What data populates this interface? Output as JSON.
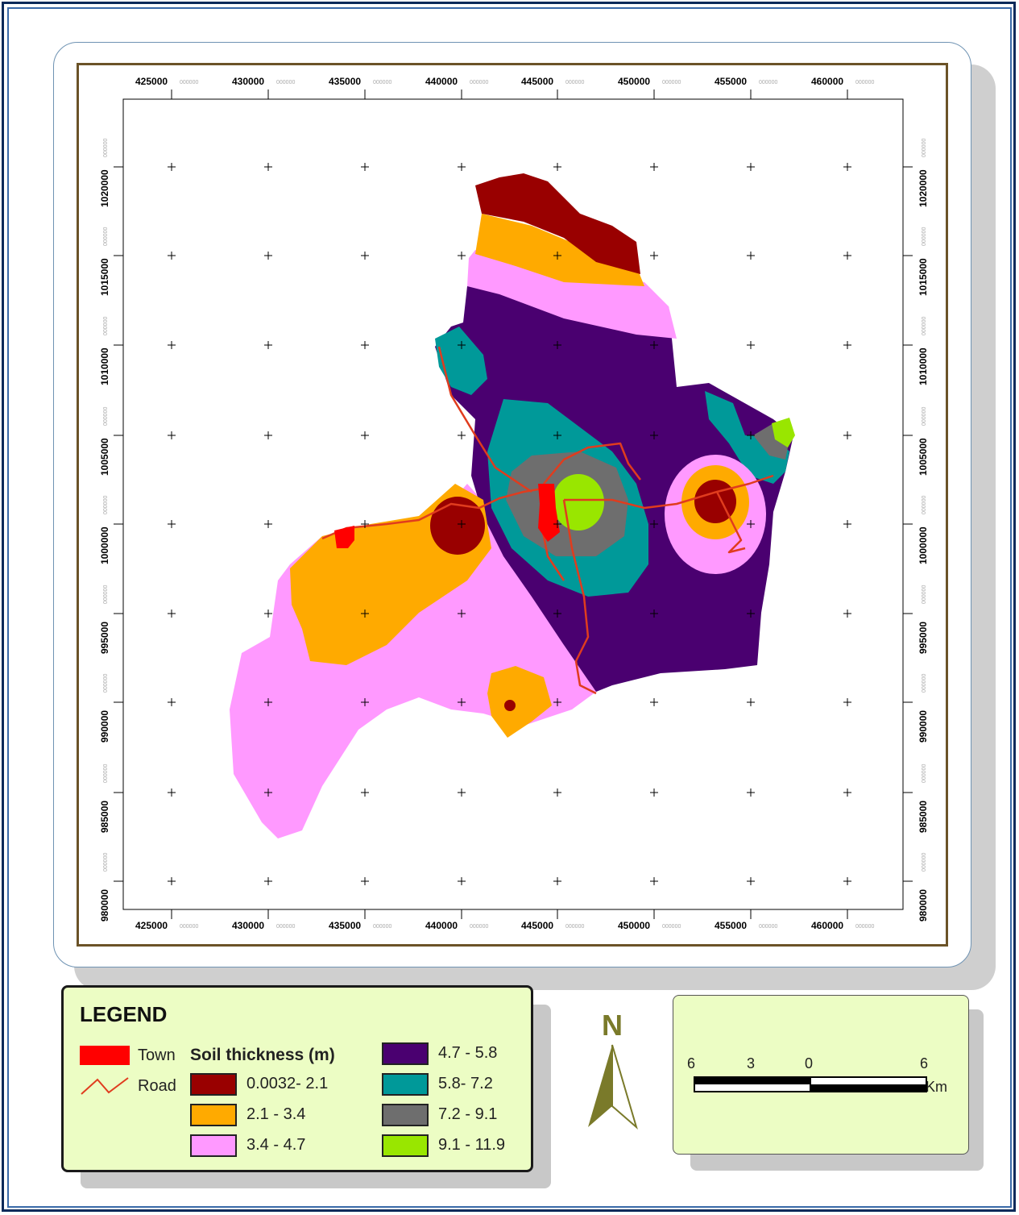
{
  "map": {
    "x_ticks": [
      {
        "label": "425000",
        "sub": "000000"
      },
      {
        "label": "430000",
        "sub": "000000"
      },
      {
        "label": "435000",
        "sub": "000000"
      },
      {
        "label": "440000",
        "sub": "000000"
      },
      {
        "label": "445000",
        "sub": "000000"
      },
      {
        "label": "450000",
        "sub": "000000"
      },
      {
        "label": "455000",
        "sub": "000000"
      },
      {
        "label": "460000",
        "sub": "000000"
      }
    ],
    "y_ticks": [
      {
        "label": "1020000",
        "sub": "000000"
      },
      {
        "label": "1015000",
        "sub": "000000"
      },
      {
        "label": "1010000",
        "sub": "000000"
      },
      {
        "label": "1005000",
        "sub": "000000"
      },
      {
        "label": "1000000",
        "sub": "000000"
      },
      {
        "label": "995000",
        "sub": "000000"
      },
      {
        "label": "990000",
        "sub": "000000"
      },
      {
        "label": "985000",
        "sub": "000000"
      },
      {
        "label": "980000",
        "sub": "000000"
      }
    ]
  },
  "legend": {
    "title": "LEGEND",
    "town_label": "Town",
    "road_label": "Road",
    "soil_heading": "Soil thickness (m)",
    "classes": [
      {
        "label": "0.0032- 2.1",
        "color": "#990000"
      },
      {
        "label": "2.1 - 3.4",
        "color": "#ffaa00"
      },
      {
        "label": "3.4 - 4.7",
        "color": "#ff99ff"
      },
      {
        "label": "4.7 - 5.8",
        "color": "#4a0070"
      },
      {
        "label": "5.8- 7.2",
        "color": "#009999"
      },
      {
        "label": "7.2 - 9.1",
        "color": "#6e6e6e"
      },
      {
        "label": "9.1 - 11.9",
        "color": "#99e600"
      }
    ],
    "town_color": "#ff0000",
    "road_color": "#e03c1e"
  },
  "north": {
    "label": "N"
  },
  "scale": {
    "labels": [
      "6",
      "3",
      "0",
      "6"
    ],
    "unit": "Km"
  }
}
